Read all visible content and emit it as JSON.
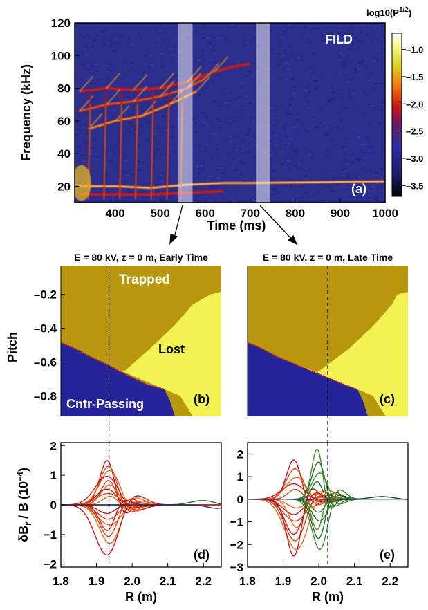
{
  "colors": {
    "spec_bg": "#2c2e8e",
    "trapped": "#b8970f",
    "lost": "#f2f252",
    "passing": "#26249a",
    "lost_edge": "#c02020",
    "mode_lines": [
      "#c81818",
      "#e04018",
      "#e86a1c",
      "#3a8a2a",
      "#1f6e1f",
      "#1a2a6a"
    ]
  },
  "annotations": {
    "fild": "FILD",
    "trapped": "Trapped",
    "lost": "Lost",
    "passing": "Cntr-Passing",
    "label_a": "(a)",
    "label_b": "(b)",
    "label_c": "(c)",
    "label_d": "(d)",
    "label_e": "(e)",
    "title_b": "E = 80 kV, z = 0 m, Early Time",
    "title_c": "E = 80 kV, z = 0 m, Late Time"
  },
  "chart_data": [
    {
      "type": "heatmap",
      "id": "a",
      "xlabel": "Time (ms)",
      "ylabel": "Frequency (kHz)",
      "xlim": [
        310,
        1000
      ],
      "ylim": [
        10,
        120
      ],
      "xticks": [
        "400",
        "500",
        "600",
        "700",
        "800",
        "900",
        "1000"
      ],
      "yticks": [
        "20",
        "40",
        "60",
        "80",
        "100",
        "120"
      ],
      "colorbar": {
        "title": "log10(P",
        "title_sup": "1/2",
        "title_end": ")",
        "range": [
          -3.7,
          -0.7
        ],
        "ticks": [
          "-1.0",
          "-1.5",
          "-2.0",
          "-2.5",
          "-3.0",
          "-3.5"
        ]
      },
      "highlight_bands_ms": [
        [
          540,
          572
        ],
        [
          713,
          745
        ]
      ],
      "modes": [
        {
          "name": "chirp",
          "points": [
            [
              320,
              78
            ],
            [
              380,
              80
            ],
            [
              440,
              79
            ],
            [
              500,
              80
            ],
            [
              560,
              84
            ],
            [
              620,
              90
            ],
            [
              660,
              93
            ],
            [
              700,
              95
            ]
          ]
        },
        {
          "name": "chirp",
          "points": [
            [
              320,
              66
            ],
            [
              380,
              70
            ],
            [
              440,
              72
            ],
            [
              500,
              75
            ],
            [
              560,
              80
            ],
            [
              600,
              86
            ]
          ]
        },
        {
          "name": "chirp",
          "points": [
            [
              340,
              55
            ],
            [
              400,
              60
            ],
            [
              460,
              63
            ],
            [
              520,
              70
            ],
            [
              580,
              78
            ]
          ]
        },
        {
          "name": "low",
          "points": [
            [
              320,
              20
            ],
            [
              400,
              20
            ],
            [
              480,
              19
            ],
            [
              560,
              21
            ],
            [
              640,
              22
            ],
            [
              700,
              22
            ],
            [
              1000,
              23
            ]
          ]
        },
        {
          "name": "low",
          "points": [
            [
              320,
              15
            ],
            [
              400,
              15
            ],
            [
              480,
              15
            ],
            [
              560,
              16
            ],
            [
              640,
              17
            ]
          ]
        }
      ]
    },
    {
      "type": "area",
      "id": "b",
      "title": "E = 80 kV, z = 0 m, Early Time",
      "ylabel": "Pitch",
      "yticks": [
        "-0.2",
        "-0.4",
        "-0.6",
        "-0.8"
      ],
      "xlim": [
        1.8,
        2.25
      ],
      "ylim": [
        -0.92,
        -0.03
      ],
      "vline_x": 1.935,
      "regions": [
        "Trapped",
        "Lost",
        "Cntr-Passing"
      ]
    },
    {
      "type": "area",
      "id": "c",
      "title": "E = 80 kV, z = 0 m, Late Time",
      "xlim": [
        1.8,
        2.25
      ],
      "ylim": [
        -0.92,
        -0.03
      ],
      "vline_x": 2.025,
      "regions": [
        "Trapped",
        "Lost",
        "Cntr-Passing"
      ]
    },
    {
      "type": "line",
      "id": "d",
      "xlabel": "R (m)",
      "ylabel": "δB",
      "ylabel_sub": "r",
      "ylabel_mid": " / B  (10",
      "ylabel_sup": "−4",
      "ylabel_end": ")",
      "xlim": [
        1.8,
        2.25
      ],
      "ylim": [
        -2.1,
        2.1
      ],
      "xticks": [
        "1.8",
        "1.9",
        "2.0",
        "2.1",
        "2.2"
      ],
      "yticks": [
        "−2",
        "−1",
        "0",
        "1",
        "2"
      ],
      "center": 1.935,
      "amplitudes": [
        1.55,
        1.35,
        1.2,
        1.0,
        0.85,
        0.7,
        0.55,
        0.4,
        0.3,
        -0.3,
        -0.5,
        -0.7,
        -0.9,
        -1.1,
        -1.35,
        -1.75
      ],
      "vline_x": 1.935
    },
    {
      "type": "line",
      "id": "e",
      "xlabel": "R (m)",
      "xlim": [
        1.8,
        2.25
      ],
      "ylim": [
        -3.0,
        2.5
      ],
      "xticks": [
        "1.8",
        "1.9",
        "2.0",
        "2.1",
        "2.2"
      ],
      "yticks": [
        "−3",
        "−2",
        "−1",
        "0",
        "1",
        "2"
      ],
      "center": 1.935,
      "amplitudes": [
        1.8,
        1.4,
        1.0,
        0.7,
        0.45,
        -0.4,
        -0.7,
        -1.0,
        -1.3,
        -1.6,
        -1.9,
        -2.3,
        -2.6
      ],
      "green_center": 2.0,
      "green_amplitudes": [
        2.3,
        1.7,
        1.2,
        0.8,
        -0.6,
        -1.0,
        -1.4,
        -1.8,
        -2.3
      ],
      "vline_x": 2.025
    }
  ]
}
